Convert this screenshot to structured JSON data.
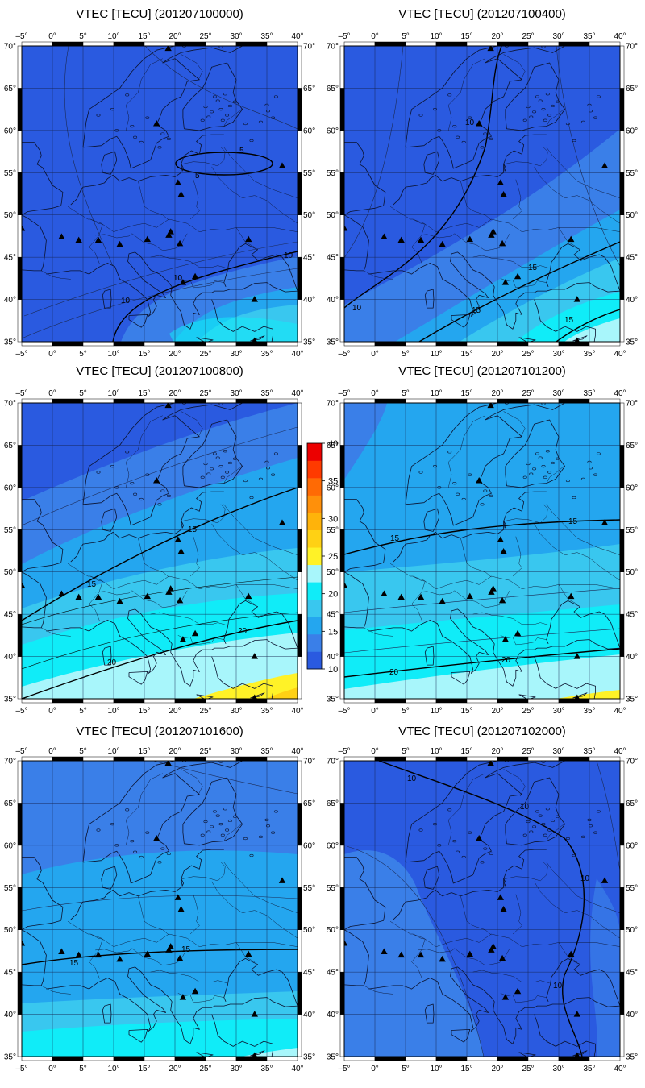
{
  "panels": [
    {
      "title": "VTEC [TECU] (201207100000)"
    },
    {
      "title": "VTEC [TECU] (201207100400)"
    },
    {
      "title": "VTEC [TECU] (201207100800)"
    },
    {
      "title": "VTEC [TECU] (201207101200)"
    },
    {
      "title": "VTEC [TECU] (201207101600)"
    },
    {
      "title": "VTEC [TECU] (201207102000)"
    }
  ],
  "axes": {
    "lon_ticks": [
      "-5",
      "0",
      "5",
      "10",
      "15",
      "20",
      "25",
      "30",
      "35",
      "40"
    ],
    "lat_ticks": [
      "35",
      "40",
      "45",
      "50",
      "55",
      "60",
      "65",
      "70"
    ],
    "degree_mark": "°",
    "lon_range": [
      -5,
      40
    ],
    "lat_range": [
      35,
      70
    ]
  },
  "colorbar": {
    "ticks": [
      "10",
      "15",
      "20",
      "25",
      "30",
      "35",
      "40"
    ],
    "colors": [
      "#2a5ae0",
      "#3a7fe8",
      "#24a6ef",
      "#39c7ef",
      "#10ecf8",
      "#a8f6fb",
      "#fff227",
      "#ffd114",
      "#ffb30a",
      "#ff900a",
      "#ff6a04",
      "#ff3a00",
      "#ec0000"
    ]
  },
  "contour_labels": {
    "p0": [
      "5",
      "5",
      "10",
      "10",
      "10"
    ],
    "p1": [
      "10",
      "10",
      "15",
      "15",
      "15"
    ],
    "p2": [
      "15",
      "15",
      "20",
      "20"
    ],
    "p3": [
      "15",
      "15",
      "20",
      "20"
    ],
    "p4": [
      "15",
      "15"
    ],
    "p5": [
      "10",
      "10",
      "10",
      "10"
    ]
  },
  "stations": [
    {
      "lon": 18.9,
      "lat": 69.7
    },
    {
      "lon": 17.0,
      "lat": 60.8
    },
    {
      "lon": 20.5,
      "lat": 53.8
    },
    {
      "lon": 21.0,
      "lat": 52.4
    },
    {
      "lon": 37.5,
      "lat": 55.8
    },
    {
      "lon": -5.0,
      "lat": 48.4
    },
    {
      "lon": 1.5,
      "lat": 47.4
    },
    {
      "lon": 4.3,
      "lat": 47.0
    },
    {
      "lon": 7.5,
      "lat": 47.0
    },
    {
      "lon": 11.0,
      "lat": 46.5
    },
    {
      "lon": 15.5,
      "lat": 47.1
    },
    {
      "lon": 19.0,
      "lat": 47.6
    },
    {
      "lon": 19.3,
      "lat": 48.0
    },
    {
      "lon": 20.8,
      "lat": 46.6
    },
    {
      "lon": 32.0,
      "lat": 47.1
    },
    {
      "lon": 21.3,
      "lat": 42.0
    },
    {
      "lon": 23.3,
      "lat": 42.7
    },
    {
      "lon": 33.0,
      "lat": 40.0
    },
    {
      "lon": 33.0,
      "lat": 35.1
    }
  ]
}
